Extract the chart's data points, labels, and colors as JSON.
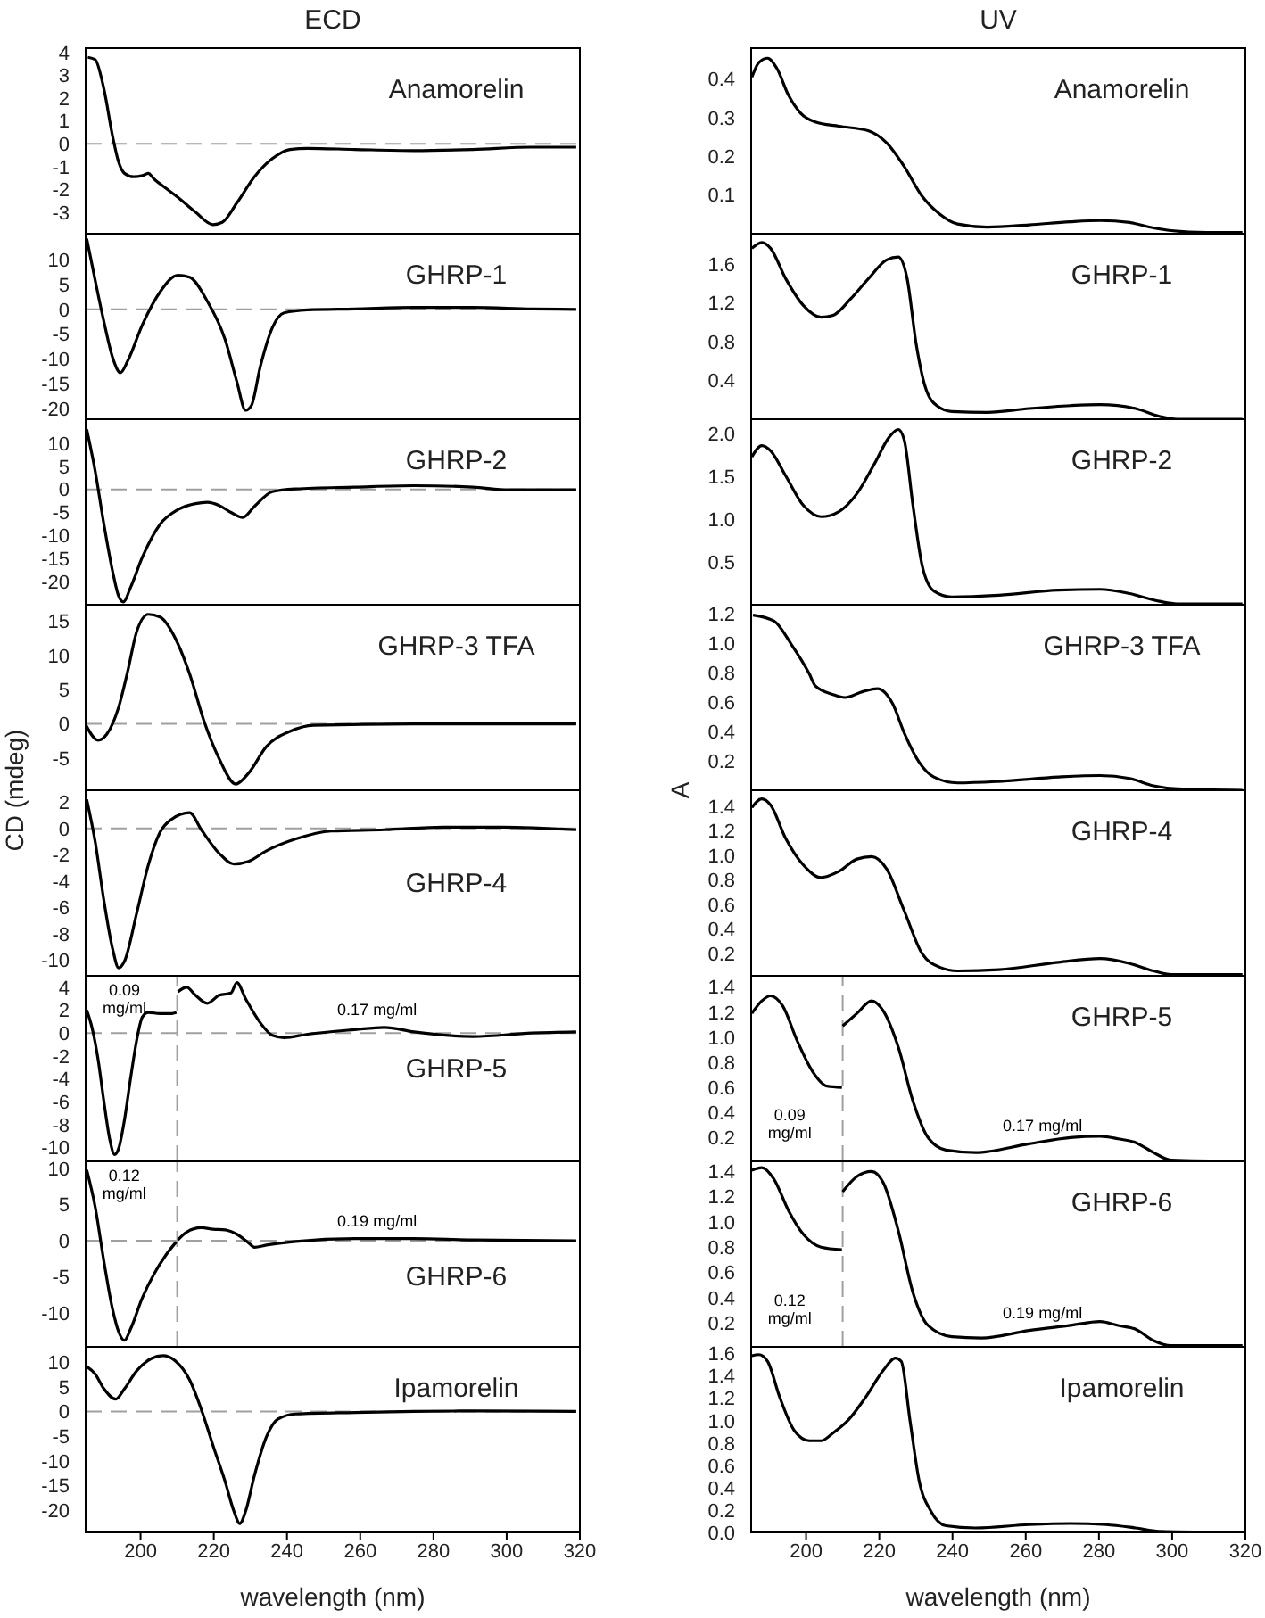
{
  "chart_data": [
    {
      "type": "line",
      "title": "ECD",
      "annotations": [
        "Anamorelin"
      ],
      "xlim": [
        185,
        320
      ],
      "xticks": [
        200,
        220,
        240,
        260,
        280,
        300,
        320
      ],
      "ylim": [
        -3.95,
        4.2
      ],
      "yticks": [
        -3,
        -2,
        -1,
        0,
        1,
        2,
        3,
        4
      ],
      "tick_labels": "y",
      "ref_lines": [
        {
          "axis": "y",
          "value": 0,
          "color": "#a0a0a0",
          "line_style": "dashed"
        }
      ],
      "series": [
        {
          "color": "#000000",
          "x": [
            185.6,
            187.6,
            190,
            192.4,
            194,
            195.6,
            198.1,
            200.5,
            202.1,
            203.7,
            206.9,
            210.2,
            215,
            219.8,
            222.3,
            226.3,
            231.1,
            236,
            240.8,
            245.6,
            258.5,
            274.7,
            290.8,
            306.9,
            319
          ],
          "values": [
            3.8,
            3.7,
            2.4,
            0.3,
            -0.8,
            -1.3,
            -1.45,
            -1.4,
            -1.3,
            -1.55,
            -1.95,
            -2.35,
            -3.0,
            -3.55,
            -3.45,
            -2.6,
            -1.45,
            -0.65,
            -0.25,
            -0.2,
            -0.25,
            -0.3,
            -0.25,
            -0.15,
            -0.15
          ]
        }
      ]
    },
    {
      "type": "line",
      "title": "UV",
      "annotations": [
        "Anamorelin"
      ],
      "xlim": [
        185,
        320
      ],
      "xticks": [
        200,
        220,
        240,
        260,
        280,
        300,
        320
      ],
      "ylim": [
        0,
        0.48
      ],
      "yticks": [
        0.1,
        0.2,
        0.3,
        0.4
      ],
      "tick_labels": "y",
      "series": [
        {
          "color": "#000000",
          "x": [
            185.2,
            187.1,
            189.5,
            192,
            195.2,
            198.5,
            202.5,
            209,
            217.1,
            222,
            226.8,
            231.7,
            236.5,
            241.4,
            249.5,
            260.9,
            272.2,
            280.3,
            288.4,
            294.9,
            299.7,
            309.5,
            319.2
          ],
          "values": [
            0.405,
            0.443,
            0.454,
            0.428,
            0.358,
            0.312,
            0.289,
            0.278,
            0.266,
            0.235,
            0.174,
            0.097,
            0.051,
            0.025,
            0.017,
            0.023,
            0.031,
            0.034,
            0.029,
            0.015,
            0.008,
            0.003,
            0.003
          ]
        }
      ]
    },
    {
      "type": "line",
      "annotations": [
        "GHRP-1"
      ],
      "xlim": [
        185,
        320
      ],
      "xticks": [
        200,
        220,
        240,
        260,
        280,
        300,
        320
      ],
      "ylim": [
        -22.2,
        15.3
      ],
      "yticks": [
        -20,
        -15,
        -10,
        -5,
        0,
        5,
        10
      ],
      "tick_labels": "y",
      "ref_lines": [
        {
          "axis": "y",
          "value": 0,
          "color": "#a0a0a0",
          "line_style": "dashed"
        }
      ],
      "series": [
        {
          "color": "#000000",
          "x": [
            185.3,
            187.6,
            190,
            192.4,
            194.5,
            196.5,
            200.5,
            205.3,
            210.2,
            213.4,
            218.2,
            223.1,
            226.3,
            228.7,
            230.3,
            232.7,
            236,
            239.2,
            245.6,
            258.5,
            274.7,
            290.8,
            306.9,
            319
          ],
          "values": [
            14.3,
            5.9,
            -2.5,
            -9.8,
            -12.8,
            -10.4,
            -3.1,
            3.5,
            6.9,
            6.5,
            1.7,
            -6.1,
            -14.6,
            -20.4,
            -19.4,
            -11.6,
            -3.7,
            -0.7,
            -0.1,
            0.1,
            0.4,
            0.4,
            0.1,
            0
          ]
        }
      ]
    },
    {
      "type": "line",
      "annotations": [
        "GHRP-1"
      ],
      "xlim": [
        185,
        320
      ],
      "xticks": [
        200,
        220,
        240,
        260,
        280,
        300,
        320
      ],
      "ylim": [
        0,
        1.91
      ],
      "yticks": [
        0.4,
        0.8,
        1.2,
        1.6
      ],
      "tick_labels": "y",
      "series": [
        {
          "color": "#000000",
          "x": [
            185.2,
            187.9,
            190.3,
            194.4,
            199.3,
            204.1,
            207.4,
            212.2,
            217.1,
            222,
            225.2,
            227.6,
            230.1,
            232.5,
            235.7,
            239.8,
            249.5,
            260.9,
            272.2,
            280.3,
            290,
            296.5,
            301.4,
            319.2
          ],
          "values": [
            1.76,
            1.82,
            1.76,
            1.45,
            1.17,
            1.05,
            1.07,
            1.24,
            1.45,
            1.64,
            1.67,
            1.45,
            0.77,
            0.34,
            0.14,
            0.08,
            0.07,
            0.11,
            0.14,
            0.15,
            0.11,
            0.03,
            0,
            0
          ]
        }
      ]
    },
    {
      "type": "line",
      "annotations": [
        "GHRP-2"
      ],
      "xlim": [
        185,
        320
      ],
      "xticks": [
        200,
        220,
        240,
        260,
        280,
        300,
        320
      ],
      "ylim": [
        -25,
        15.2
      ],
      "yticks": [
        -20,
        -15,
        -10,
        -5,
        0,
        5,
        10
      ],
      "tick_labels": "y",
      "ref_lines": [
        {
          "axis": "y",
          "value": 0,
          "color": "#a0a0a0",
          "line_style": "dashed"
        }
      ],
      "series": [
        {
          "color": "#000000",
          "x": [
            185.3,
            187.6,
            190,
            192.4,
            194,
            195.3,
            197.3,
            200.5,
            205.3,
            210.2,
            215,
            218.2,
            221.5,
            224.7,
            227.9,
            231.1,
            236,
            242.4,
            258.5,
            274.7,
            290.8,
            300.5,
            319
          ],
          "values": [
            13,
            4,
            -7.6,
            -17.9,
            -23.1,
            -24.4,
            -21.2,
            -14.7,
            -7.6,
            -4.4,
            -3.1,
            -2.8,
            -3.5,
            -5,
            -6.1,
            -3.7,
            -0.5,
            0.1,
            0.5,
            0.8,
            0.5,
            -0.1,
            -0.1
          ]
        }
      ]
    },
    {
      "type": "line",
      "annotations": [
        "GHRP-2"
      ],
      "xlim": [
        185,
        320
      ],
      "xticks": [
        200,
        220,
        240,
        260,
        280,
        300,
        320
      ],
      "ylim": [
        0,
        2.17
      ],
      "yticks": [
        0.5,
        {
          "value": 1,
          "label": "1.0"
        },
        1.5,
        {
          "value": 2,
          "label": "2.0"
        }
      ],
      "tick_labels": "y",
      "series": [
        {
          "color": "#000000",
          "x": [
            185.2,
            187.9,
            190.3,
            194.4,
            199.3,
            204.1,
            209,
            213.9,
            218.7,
            222.7,
            225.2,
            226.8,
            229.2,
            231.7,
            234.9,
            239.8,
            252.7,
            268.9,
            280.3,
            288.4,
            296.5,
            301.4,
            319.2
          ],
          "values": [
            1.73,
            1.86,
            1.8,
            1.51,
            1.16,
            1.03,
            1.09,
            1.3,
            1.65,
            1.96,
            2.05,
            1.93,
            1.16,
            0.46,
            0.16,
            0.09,
            0.11,
            0.17,
            0.18,
            0.13,
            0.04,
            0.01,
            0.01
          ]
        }
      ]
    },
    {
      "type": "line",
      "annotations": [
        "GHRP-3 TFA"
      ],
      "xlim": [
        185,
        320
      ],
      "xticks": [
        200,
        220,
        240,
        260,
        280,
        300,
        320
      ],
      "ylim": [
        -9.7,
        17.4
      ],
      "yticks": [
        -5,
        0,
        5,
        10,
        15
      ],
      "tick_labels": "y",
      "ylabel": "CD (mdeg)",
      "ref_lines": [
        {
          "axis": "y",
          "value": 0,
          "color": "#a0a0a0",
          "line_style": "dashed"
        }
      ],
      "series": [
        {
          "color": "#000000",
          "x": [
            185.1,
            188.4,
            190.8,
            194,
            196.5,
            198.9,
            202.1,
            205.3,
            210.2,
            213.4,
            217.4,
            221.4,
            226,
            229.5,
            234.4,
            240.8,
            247.3,
            274.5,
            319
          ],
          "values": [
            -0.2,
            -2.4,
            -1.5,
            2.4,
            7.7,
            13.4,
            16,
            15.6,
            11.7,
            7.3,
            0.3,
            -5,
            -8.8,
            -7.2,
            -3.3,
            -1.1,
            -0.2,
            0,
            0
          ]
        }
      ]
    },
    {
      "type": "line",
      "annotations": [
        "GHRP-3 TFA"
      ],
      "xlim": [
        185,
        320
      ],
      "xticks": [
        200,
        220,
        240,
        260,
        280,
        300,
        320
      ],
      "ylim": [
        0,
        1.26
      ],
      "yticks": [
        0.2,
        0.4,
        0.6,
        0.8,
        {
          "value": 1,
          "label": "1.0"
        },
        1.2
      ],
      "tick_labels": "y",
      "ylabel": "A",
      "series": [
        {
          "color": "#000000",
          "x": [
            185.5,
            191.2,
            196,
            200.9,
            202.5,
            207.4,
            210.6,
            215.5,
            219.5,
            223.6,
            226.8,
            230.9,
            234.9,
            241.4,
            252.7,
            269,
            280.3,
            288.4,
            294.9,
            301.4,
            319.2
          ],
          "values": [
            1.19,
            1.15,
            0.99,
            0.79,
            0.71,
            0.65,
            0.63,
            0.67,
            0.69,
            0.59,
            0.39,
            0.19,
            0.09,
            0.05,
            0.06,
            0.09,
            0.1,
            0.08,
            0.03,
            0.01,
            0
          ]
        }
      ]
    },
    {
      "type": "line",
      "annotations": [
        "GHRP-4"
      ],
      "xlim": [
        185,
        320
      ],
      "xticks": [
        200,
        220,
        240,
        260,
        280,
        300,
        320
      ],
      "ylim": [
        -11.2,
        2.9
      ],
      "yticks": [
        -10,
        -8,
        -6,
        -4,
        -2,
        0,
        2
      ],
      "tick_labels": "y",
      "ref_lines": [
        {
          "axis": "y",
          "value": 0,
          "color": "#a0a0a0",
          "line_style": "dashed"
        }
      ],
      "series": [
        {
          "color": "#000000",
          "x": [
            185.3,
            187.6,
            190,
            192.4,
            194,
            195.6,
            198.9,
            202.1,
            205.3,
            208.5,
            213.4,
            216.6,
            221.5,
            225.5,
            229.5,
            234.4,
            242.4,
            252.1,
            266.6,
            282.7,
            298.9,
            319
          ],
          "values": [
            2.2,
            -1,
            -5.5,
            -9.2,
            -10.6,
            -10.1,
            -6.5,
            -2.8,
            -0.3,
            0.7,
            1.2,
            -0.1,
            -1.9,
            -2.7,
            -2.5,
            -1.7,
            -0.8,
            -0.2,
            -0.1,
            0.1,
            0.1,
            -0.1
          ]
        }
      ]
    },
    {
      "type": "line",
      "annotations": [
        "GHRP-4"
      ],
      "xlim": [
        185,
        320
      ],
      "xticks": [
        200,
        220,
        240,
        260,
        280,
        300,
        320
      ],
      "ylim": [
        0.02,
        1.53
      ],
      "yticks": [
        0.2,
        0.4,
        0.6,
        0.8,
        {
          "value": 1,
          "label": "1.0"
        },
        1.2,
        1.4
      ],
      "tick_labels": "y",
      "series": [
        {
          "color": "#000000",
          "x": [
            185.2,
            187.9,
            190.3,
            194.4,
            199.3,
            204.1,
            209,
            213.9,
            217.9,
            222,
            226.8,
            231.7,
            236.5,
            241.4,
            252.7,
            268.9,
            280.3,
            288.4,
            294.9,
            299.7,
            319.2
          ],
          "values": [
            1.39,
            1.46,
            1.41,
            1.14,
            0.92,
            0.82,
            0.87,
            0.97,
            0.99,
            0.89,
            0.55,
            0.2,
            0.09,
            0.06,
            0.07,
            0.13,
            0.16,
            0.12,
            0.06,
            0.03,
            0.03
          ]
        }
      ]
    },
    {
      "type": "line",
      "annotations": [
        "GHRP-5"
      ],
      "xlim": [
        185,
        320
      ],
      "xticks": [
        200,
        220,
        240,
        260,
        280,
        300,
        320
      ],
      "ylim": [
        -11.2,
        5
      ],
      "yticks": [
        -10,
        -8,
        -6,
        -4,
        -2,
        0,
        2,
        4
      ],
      "tick_labels": "y",
      "ref_lines": [
        {
          "axis": "y",
          "value": 0,
          "color": "#a0a0a0",
          "line_style": "dashed"
        },
        {
          "axis": "x",
          "value": 210,
          "color": "#a0a0a0",
          "line_style": "dashed"
        }
      ],
      "series": [
        {
          "name": "0.09 mg/ml",
          "color": "#000000",
          "x": [
            185.3,
            186.8,
            188.4,
            190,
            191.6,
            192.9,
            194,
            195.6,
            197.3,
            198.9,
            200.5,
            202.1,
            205.3,
            208.5,
            209.8
          ],
          "values": [
            2,
            0.4,
            -2.3,
            -6,
            -9.3,
            -10.6,
            -10.1,
            -7.6,
            -3.9,
            -0.7,
            1.4,
            1.8,
            1.7,
            1.7,
            1.8
          ]
        },
        {
          "name": "0.17 mg/ml",
          "color": "#000000",
          "x": [
            210.2,
            212.6,
            215,
            218.2,
            221.5,
            224.7,
            226.3,
            228.7,
            232.7,
            236,
            239.2,
            245.6,
            258.5,
            266.6,
            274.7,
            290.8,
            306.9,
            319
          ],
          "values": [
            3.6,
            4,
            3.3,
            2.6,
            3.3,
            3.5,
            4.4,
            3,
            0.9,
            -0.2,
            -0.4,
            -0.1,
            0.3,
            0.5,
            0.1,
            -0.3,
            0,
            0.1
          ]
        }
      ]
    },
    {
      "type": "line",
      "annotations": [
        "GHRP-5"
      ],
      "xlim": [
        185,
        320
      ],
      "xticks": [
        200,
        220,
        240,
        260,
        280,
        300,
        320
      ],
      "ylim": [
        0.01,
        1.49
      ],
      "yticks": [
        0.2,
        0.4,
        0.6,
        0.8,
        {
          "value": 1,
          "label": "1.0"
        },
        1.2,
        1.4
      ],
      "tick_labels": "y",
      "ref_lines": [
        {
          "axis": "x",
          "value": 210,
          "color": "#a0a0a0",
          "line_style": "dashed"
        }
      ],
      "series": [
        {
          "name": "0.09 mg/ml",
          "color": "#000000",
          "x": [
            185.2,
            187.9,
            190.3,
            193.6,
            197.6,
            201.7,
            205.7,
            209.8
          ],
          "values": [
            1.19,
            1.29,
            1.33,
            1.25,
            0.97,
            0.73,
            0.61,
            0.6
          ]
        },
        {
          "name": "0.17 mg/ml",
          "color": "#000000",
          "x": [
            210,
            213.9,
            217.9,
            221.1,
            225.2,
            229.2,
            233.3,
            238.2,
            246.3,
            260.9,
            272.2,
            280.3,
            285.2,
            290,
            294.9,
            299.7,
            319.2
          ],
          "values": [
            1.09,
            1.19,
            1.29,
            1.21,
            0.92,
            0.49,
            0.2,
            0.1,
            0.08,
            0.15,
            0.2,
            0.21,
            0.19,
            0.16,
            0.08,
            0.02,
            0.01
          ]
        }
      ]
    },
    {
      "type": "line",
      "annotations": [
        "GHRP-6"
      ],
      "xlim": [
        185,
        320
      ],
      "xticks": [
        200,
        220,
        240,
        260,
        280,
        300,
        320
      ],
      "ylim": [
        -14.7,
        11
      ],
      "yticks": [
        -10,
        -5,
        0,
        5,
        10
      ],
      "tick_labels": "y",
      "ref_lines": [
        {
          "axis": "y",
          "value": 0,
          "color": "#a0a0a0",
          "line_style": "dashed"
        },
        {
          "axis": "x",
          "value": 210,
          "color": "#a0a0a0",
          "line_style": "dashed"
        }
      ],
      "series": [
        {
          "name": "0.12 mg/ml",
          "color": "#000000",
          "x": [
            185.3,
            187.6,
            190,
            192.4,
            194,
            195.6,
            197.3,
            200.5,
            203.7,
            206.9,
            209.7
          ],
          "values": [
            9.8,
            4.7,
            -2.9,
            -9.6,
            -12.6,
            -13.8,
            -12.2,
            -7.9,
            -4.6,
            -2,
            -0.2
          ]
        },
        {
          "name": "0.19 mg/ml",
          "color": "#000000",
          "x": [
            210.2,
            212.6,
            216.6,
            219.8,
            223.1,
            226.3,
            229.5,
            231.1,
            234.4,
            242.4,
            258.5,
            274.7,
            290.8,
            319
          ],
          "values": [
            0.1,
            1.2,
            1.8,
            1.6,
            1.5,
            0.9,
            -0.3,
            -0.9,
            -0.6,
            -0.1,
            0.3,
            0.3,
            0.1,
            0
          ]
        }
      ]
    },
    {
      "type": "line",
      "annotations": [
        "GHRP-6"
      ],
      "xlim": [
        185,
        320
      ],
      "xticks": [
        200,
        220,
        240,
        260,
        280,
        300,
        320
      ],
      "ylim": [
        0.01,
        1.48
      ],
      "yticks": [
        0.2,
        0.4,
        0.6,
        0.8,
        {
          "value": 1,
          "label": "1.0"
        },
        1.2,
        1.4
      ],
      "tick_labels": "y",
      "ref_lines": [
        {
          "axis": "x",
          "value": 210,
          "color": "#a0a0a0",
          "line_style": "dashed"
        }
      ],
      "series": [
        {
          "name": "0.12 mg/ml",
          "color": "#000000",
          "x": [
            185.2,
            187.9,
            191.2,
            195.2,
            199.3,
            204.1,
            209.8
          ],
          "values": [
            1.41,
            1.43,
            1.34,
            1.09,
            0.9,
            0.8,
            0.78
          ]
        },
        {
          "name": "0.19 mg/ml",
          "color": "#000000",
          "x": [
            210,
            213.9,
            217.9,
            221.1,
            225.2,
            229.2,
            233.3,
            239.8,
            247.9,
            260.9,
            272.2,
            280.3,
            285.2,
            290,
            294.9,
            299.7,
            319.2
          ],
          "values": [
            1.24,
            1.36,
            1.4,
            1.31,
            0.93,
            0.44,
            0.18,
            0.09,
            0.08,
            0.14,
            0.18,
            0.21,
            0.18,
            0.15,
            0.06,
            0.02,
            0.02
          ]
        }
      ]
    },
    {
      "type": "line",
      "annotations": [
        "Ipamorelin"
      ],
      "xlabel": "wavelength (nm)",
      "xlim": [
        185,
        320
      ],
      "xticks": [
        200,
        220,
        240,
        260,
        280,
        300,
        320
      ],
      "ylim": [
        -24.5,
        13.1
      ],
      "yticks": [
        -20,
        -15,
        -10,
        -5,
        0,
        5,
        10
      ],
      "ref_lines": [
        {
          "axis": "y",
          "value": 0,
          "color": "#a0a0a0",
          "line_style": "dashed"
        }
      ],
      "series": [
        {
          "color": "#000000",
          "x": [
            185.3,
            187.6,
            190,
            193.2,
            195.6,
            198.9,
            202.9,
            206.1,
            209.4,
            213.4,
            216.6,
            219.8,
            223.1,
            225.5,
            227.1,
            228.7,
            231.1,
            234.4,
            237.6,
            242.4,
            258.5,
            274.7,
            290.8,
            319
          ],
          "values": [
            9.1,
            7.6,
            4.6,
            2.5,
            4.6,
            8.2,
            10.7,
            11.3,
            10.3,
            6.4,
            0.4,
            -6.9,
            -14.2,
            -20.2,
            -22.7,
            -20.2,
            -13,
            -5.1,
            -1.5,
            -0.5,
            -0.2,
            0,
            0.1,
            0
          ]
        }
      ]
    },
    {
      "type": "line",
      "annotations": [
        "Ipamorelin"
      ],
      "xlabel": "wavelength (nm)",
      "xlim": [
        185,
        320
      ],
      "xticks": [
        200,
        220,
        240,
        260,
        280,
        300,
        320
      ],
      "ylim": [
        0,
        1.66
      ],
      "yticks": [
        {
          "value": 0,
          "label": "0.0"
        },
        0.2,
        0.4,
        0.6,
        0.8,
        {
          "value": 1,
          "label": "1.0"
        },
        1.2,
        1.4,
        1.6
      ],
      "series": [
        {
          "color": "#000000",
          "x": [
            185.2,
            187.1,
            189.5,
            192.8,
            196.8,
            200.9,
            204.1,
            207.4,
            211.4,
            216.3,
            221.1,
            224.4,
            226,
            228.4,
            230.9,
            234.1,
            238.2,
            246.3,
            260.9,
            272.2,
            281.9,
            290,
            296.5,
            319.2
          ],
          "values": [
            1.58,
            1.59,
            1.53,
            1.21,
            0.91,
            0.82,
            0.82,
            0.89,
            1,
            1.21,
            1.45,
            1.56,
            1.53,
            1,
            0.46,
            0.19,
            0.06,
            0.04,
            0.07,
            0.08,
            0.07,
            0.04,
            0.01,
            0
          ]
        }
      ]
    }
  ]
}
